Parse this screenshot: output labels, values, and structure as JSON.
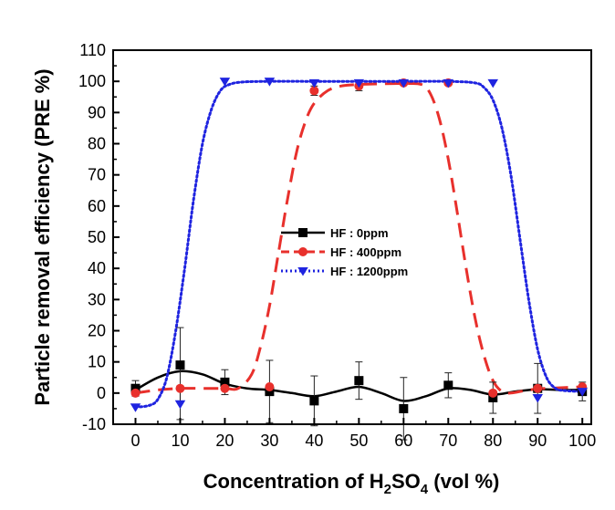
{
  "chart_data": {
    "type": "scatter",
    "xlabel_main": "Concentration of H",
    "xlabel_sub1": "2",
    "xlabel_mid": "SO",
    "xlabel_sub2": "4",
    "xlabel_end": " (vol %)",
    "ylabel": "Particle removal efficiency (PRE %)",
    "xlim": [
      -5,
      102
    ],
    "ylim": [
      -10,
      110
    ],
    "x_ticks": [
      0,
      10,
      20,
      30,
      40,
      50,
      60,
      70,
      80,
      90,
      100
    ],
    "y_ticks": [
      -10,
      0,
      10,
      20,
      30,
      40,
      50,
      60,
      70,
      80,
      90,
      100,
      110
    ],
    "legend_position": "center",
    "series": [
      {
        "name": "HF : 0ppm",
        "color": "#000000",
        "marker": "square",
        "line_style": "solid",
        "points": [
          {
            "x": 0,
            "y": 1.5,
            "err": 2.5
          },
          {
            "x": 10,
            "y": 9,
            "err": 12
          },
          {
            "x": 20,
            "y": 3.5,
            "err": 4
          },
          {
            "x": 30,
            "y": 0.5,
            "err": 10
          },
          {
            "x": 40,
            "y": -2.5,
            "err": 8
          },
          {
            "x": 50,
            "y": 4,
            "err": 6
          },
          {
            "x": 60,
            "y": -5,
            "err": 10
          },
          {
            "x": 70,
            "y": 2.5,
            "err": 4
          },
          {
            "x": 80,
            "y": -1.5,
            "err": 5
          },
          {
            "x": 90,
            "y": 1.5,
            "err": 8
          },
          {
            "x": 100,
            "y": 0.5,
            "err": 3
          }
        ],
        "fit": [
          [
            0,
            1
          ],
          [
            5,
            5
          ],
          [
            10,
            7
          ],
          [
            15,
            6
          ],
          [
            20,
            3
          ],
          [
            25,
            1.5
          ],
          [
            30,
            1
          ],
          [
            35,
            0
          ],
          [
            40,
            -1
          ],
          [
            45,
            0.5
          ],
          [
            50,
            2
          ],
          [
            55,
            0
          ],
          [
            60,
            -2.5
          ],
          [
            65,
            -1
          ],
          [
            70,
            1.5
          ],
          [
            75,
            1
          ],
          [
            80,
            -0.5
          ],
          [
            85,
            0.5
          ],
          [
            90,
            1.2
          ],
          [
            95,
            1
          ],
          [
            100,
            1
          ]
        ]
      },
      {
        "name": "HF : 400ppm",
        "color": "#e8302c",
        "marker": "circle",
        "line_style": "dashed",
        "points": [
          {
            "x": 0,
            "y": 0,
            "err": 0
          },
          {
            "x": 10,
            "y": 1.5,
            "err": 0
          },
          {
            "x": 20,
            "y": 1.5,
            "err": 0
          },
          {
            "x": 30,
            "y": 2,
            "err": 0
          },
          {
            "x": 40,
            "y": 97,
            "err": 1.5
          },
          {
            "x": 50,
            "y": 98.5,
            "err": 1.5
          },
          {
            "x": 60,
            "y": 99.5,
            "err": 0.5
          },
          {
            "x": 70,
            "y": 99.5,
            "err": 0.5
          },
          {
            "x": 80,
            "y": 0,
            "err": 0
          },
          {
            "x": 90,
            "y": 1.5,
            "err": 0
          },
          {
            "x": 100,
            "y": 2,
            "err": 0
          }
        ],
        "fit": [
          [
            0,
            0
          ],
          [
            5,
            1
          ],
          [
            10,
            1.5
          ],
          [
            15,
            1.5
          ],
          [
            20,
            1.5
          ],
          [
            23,
            1.5
          ],
          [
            26,
            6
          ],
          [
            28,
            15
          ],
          [
            30,
            28
          ],
          [
            32,
            45
          ],
          [
            34,
            62
          ],
          [
            36,
            77
          ],
          [
            38,
            87
          ],
          [
            40,
            93
          ],
          [
            43,
            97
          ],
          [
            46,
            98.5
          ],
          [
            50,
            99
          ],
          [
            55,
            99.2
          ],
          [
            60,
            99.3
          ],
          [
            64,
            99
          ],
          [
            66,
            96
          ],
          [
            68,
            88
          ],
          [
            70,
            75
          ],
          [
            72,
            58
          ],
          [
            74,
            40
          ],
          [
            76,
            24
          ],
          [
            78,
            12
          ],
          [
            80,
            4
          ],
          [
            82,
            0.5
          ],
          [
            84,
            0
          ],
          [
            88,
            1
          ],
          [
            92,
            1.5
          ],
          [
            100,
            2
          ]
        ]
      },
      {
        "name": "HF : 1200ppm",
        "color": "#1f24e0",
        "marker": "triangle-down",
        "line_style": "dotted",
        "points": [
          {
            "x": 0,
            "y": -4.5,
            "err": 0
          },
          {
            "x": 10,
            "y": -3.5,
            "err": 5
          },
          {
            "x": 20,
            "y": 100,
            "err": 0
          },
          {
            "x": 30,
            "y": 100,
            "err": 0
          },
          {
            "x": 40,
            "y": 99.5,
            "err": 0
          },
          {
            "x": 50,
            "y": 99.5,
            "err": 0
          },
          {
            "x": 60,
            "y": 99.5,
            "err": 0
          },
          {
            "x": 70,
            "y": 99.5,
            "err": 0
          },
          {
            "x": 80,
            "y": 99.5,
            "err": 0
          },
          {
            "x": 90,
            "y": -1.5,
            "err": 0
          },
          {
            "x": 100,
            "y": 0.5,
            "err": 0
          }
        ],
        "fit": [
          [
            0,
            -4.5
          ],
          [
            3,
            -4
          ],
          [
            5,
            -2
          ],
          [
            7,
            5
          ],
          [
            9,
            20
          ],
          [
            11,
            40
          ],
          [
            13,
            62
          ],
          [
            15,
            80
          ],
          [
            17,
            91
          ],
          [
            19,
            97
          ],
          [
            21,
            99
          ],
          [
            24,
            99.8
          ],
          [
            30,
            100
          ],
          [
            40,
            100
          ],
          [
            50,
            100
          ],
          [
            60,
            100
          ],
          [
            70,
            100
          ],
          [
            76,
            99.5
          ],
          [
            78,
            98
          ],
          [
            80,
            94
          ],
          [
            82,
            85
          ],
          [
            84,
            70
          ],
          [
            86,
            50
          ],
          [
            88,
            30
          ],
          [
            90,
            14
          ],
          [
            92,
            5
          ],
          [
            94,
            1.5
          ],
          [
            96,
            0.8
          ],
          [
            100,
            0.5
          ]
        ]
      }
    ]
  }
}
